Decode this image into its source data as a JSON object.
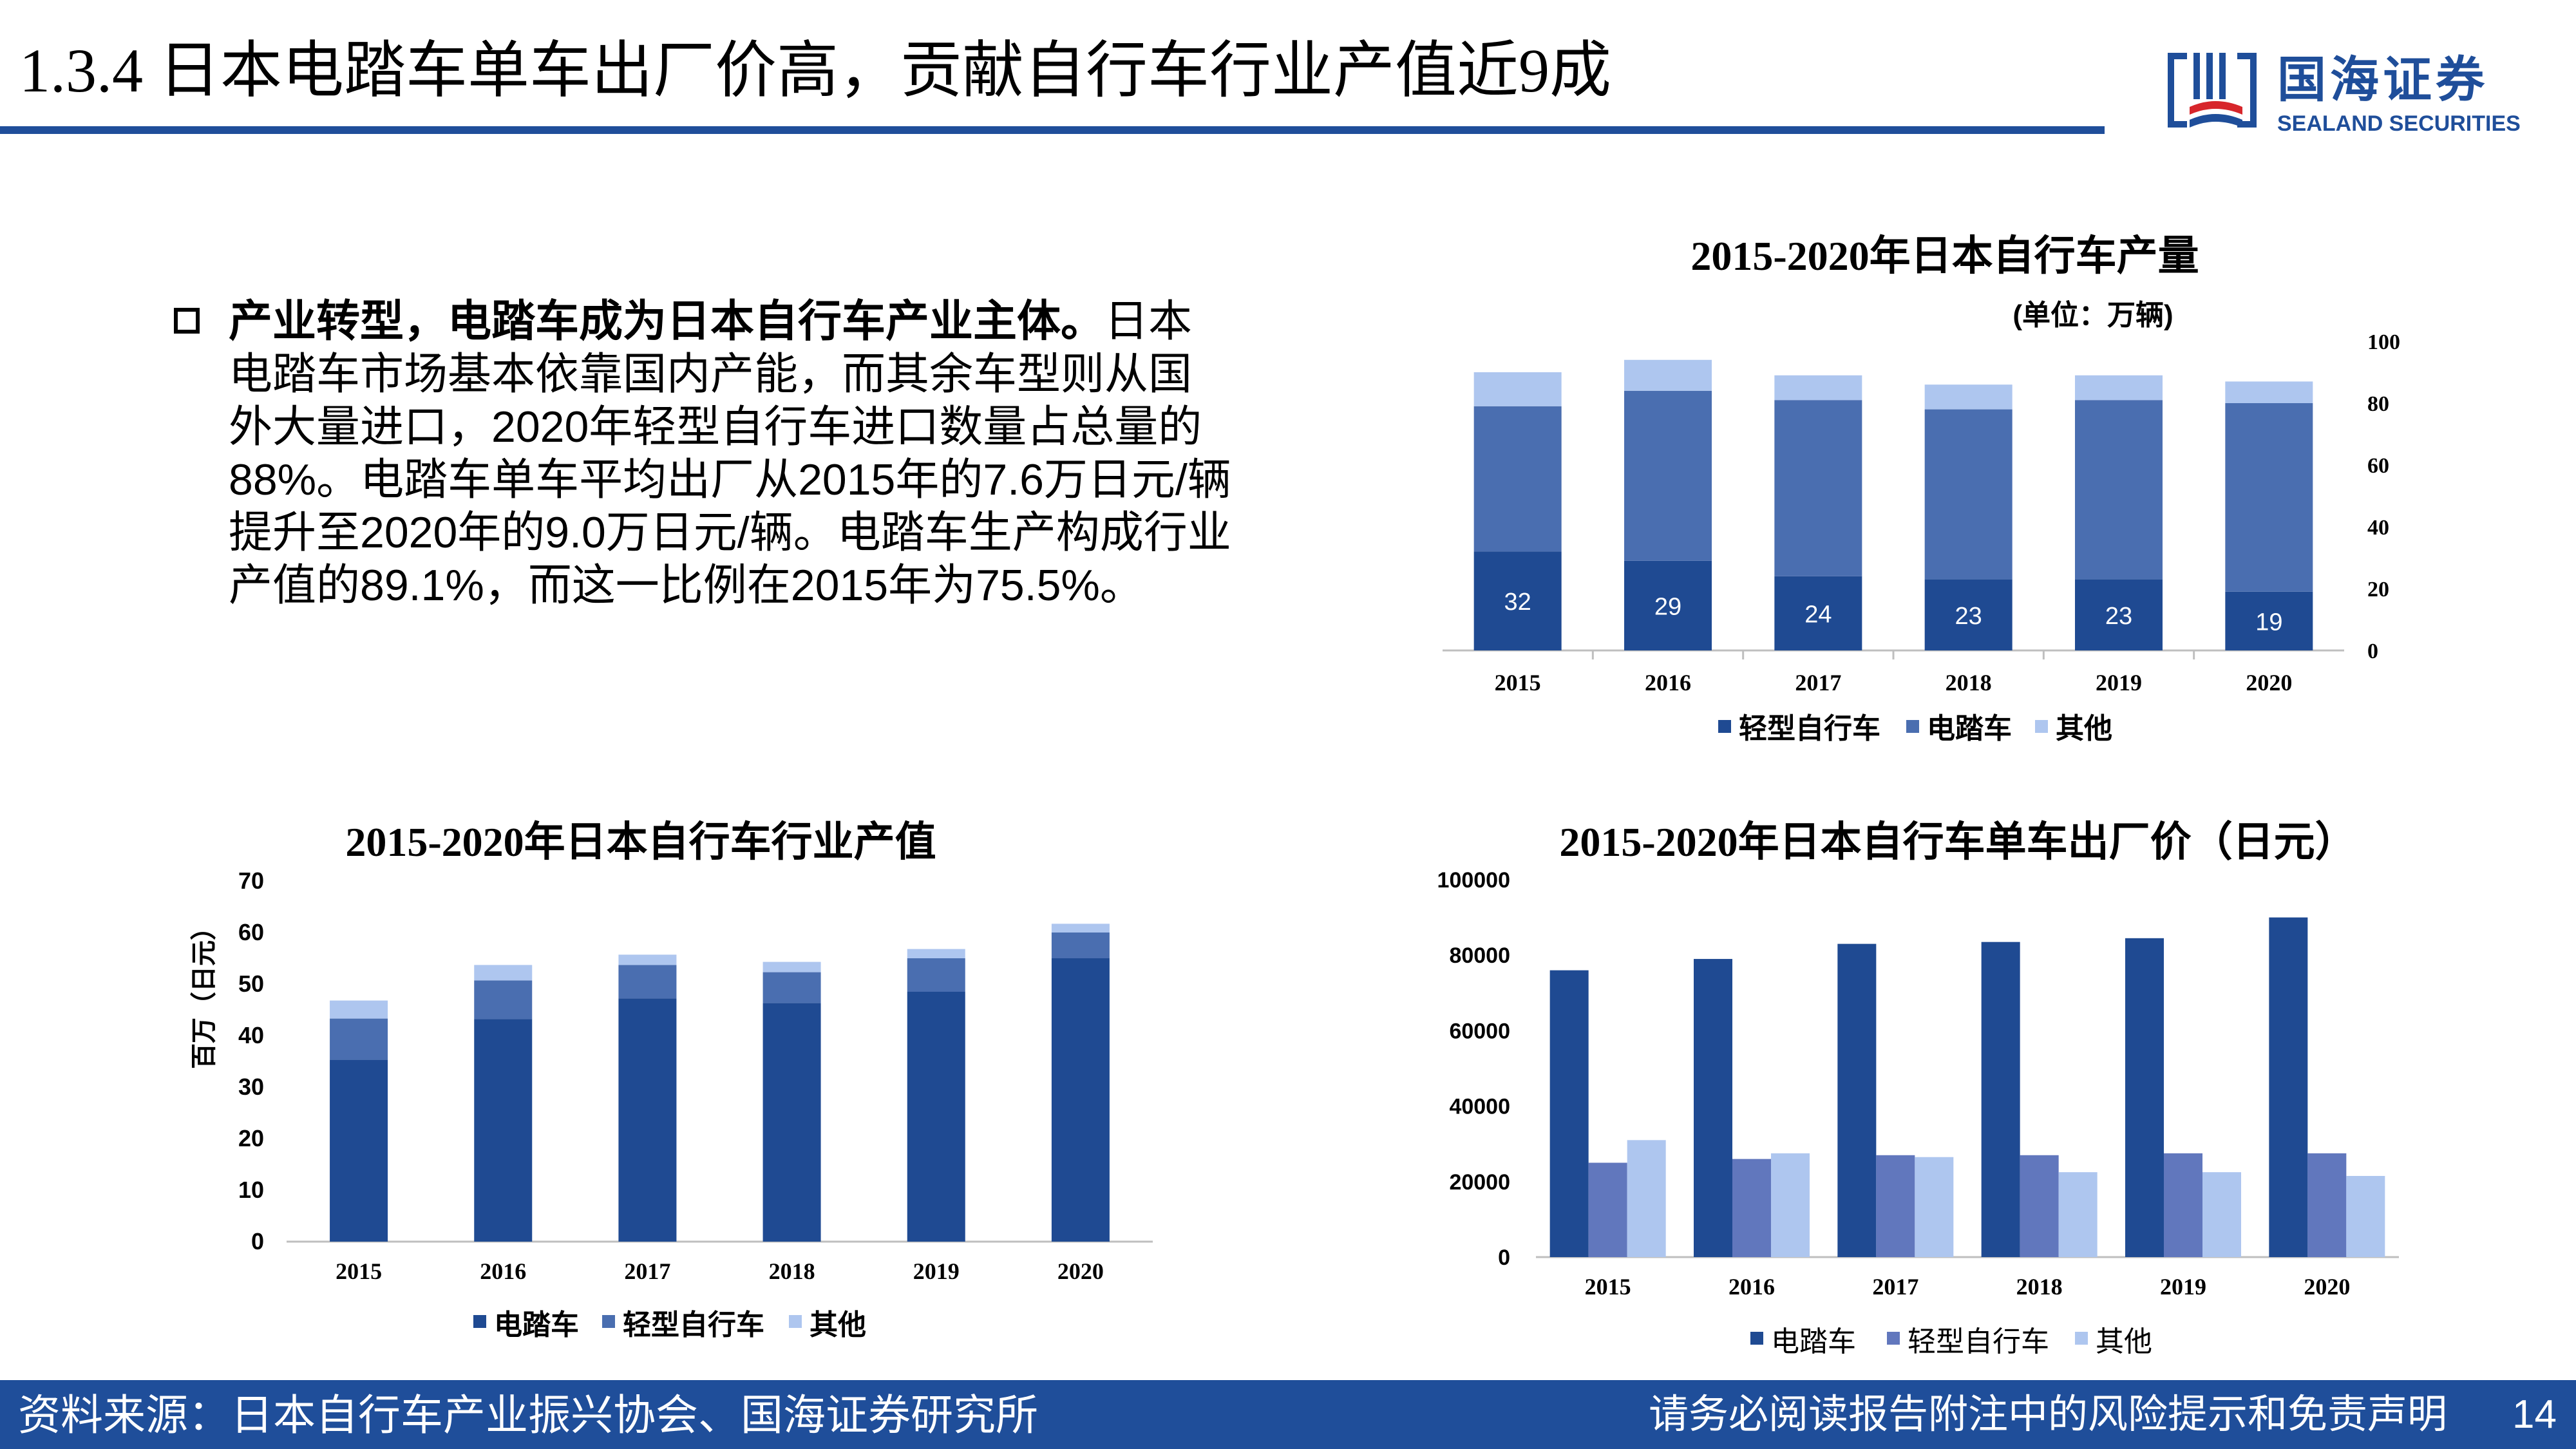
{
  "header": {
    "title": "1.3.4 日本电踏车单车出厂价高，贡献自行车行业产值近9成",
    "logo_cn": "国海证券",
    "logo_en": "SEALAND SECURITIES"
  },
  "body": {
    "bold": "产业转型，电踏车成为日本自行车产业主体。",
    "text": "日本电踏车市场基本依靠国内产能，而其余车型则从国外大量进口，2020年轻型自行车进口数量占总量的88%。电踏车单车平均出厂从2015年的7.6万日元/辆提升至2020年的9.0万日元/辆。电踏车生产构成行业产值的89.1%，而这一比例在2015年为75.5%。"
  },
  "footer": {
    "source": "资料来源：日本自行车产业振兴协会、国海证券研究所",
    "disclaimer": "请务必阅读报告附注中的风险提示和免责声明",
    "page": "14"
  },
  "colors": {
    "brand": "#1f4e9a",
    "dark_blue": "#1f4a92",
    "mid_blue": "#4a6eb0",
    "light_blue": "#aec6ef",
    "violet_blue": "#6177bd"
  },
  "chart_data": [
    {
      "type": "bar",
      "stacked": true,
      "title": "2015-2020年日本自行车产量",
      "subtitle": "(单位：万辆)",
      "categories": [
        "2015",
        "2016",
        "2017",
        "2018",
        "2019",
        "2020"
      ],
      "series": [
        {
          "name": "轻型自行车",
          "values": [
            32,
            29,
            24,
            23,
            23,
            19
          ],
          "labels": [
            "32",
            "29",
            "24",
            "23",
            "23",
            "19"
          ]
        },
        {
          "name": "电踏车",
          "values": [
            47,
            55,
            57,
            55,
            58,
            61
          ]
        },
        {
          "name": "其他",
          "values": [
            11,
            10,
            8,
            8,
            8,
            7
          ]
        }
      ],
      "ylim": [
        0,
        100
      ],
      "yticks": [
        "0",
        "20",
        "40",
        "60",
        "80",
        "100"
      ],
      "yaxis_side": "right",
      "legend": "bottom"
    },
    {
      "type": "bar",
      "stacked": true,
      "title": "2015-2020年日本自行车行业产值",
      "ylabel": "百万（日元）",
      "categories": [
        "2015",
        "2016",
        "2017",
        "2018",
        "2019",
        "2020"
      ],
      "series": [
        {
          "name": "电踏车",
          "values": [
            35.3,
            43.2,
            47.2,
            46.3,
            48.5,
            55.0
          ]
        },
        {
          "name": "轻型自行车",
          "values": [
            8.0,
            7.5,
            6.5,
            6.0,
            6.5,
            5.0
          ]
        },
        {
          "name": "其他",
          "values": [
            3.5,
            3.0,
            2.0,
            2.0,
            1.8,
            1.7
          ]
        }
      ],
      "ylim": [
        0,
        70
      ],
      "yticks": [
        "0",
        "10",
        "20",
        "30",
        "40",
        "50",
        "60",
        "70"
      ],
      "legend": "bottom"
    },
    {
      "type": "bar",
      "stacked": false,
      "title": "2015-2020年日本自行车单车出厂价（日元）",
      "categories": [
        "2015",
        "2016",
        "2017",
        "2018",
        "2019",
        "2020"
      ],
      "series": [
        {
          "name": "电踏车",
          "values": [
            76000,
            79000,
            83000,
            83500,
            84500,
            90000
          ]
        },
        {
          "name": "轻型自行车",
          "values": [
            25000,
            26000,
            27000,
            27000,
            27500,
            27500
          ]
        },
        {
          "name": "其他",
          "values": [
            31000,
            27500,
            26500,
            22500,
            22500,
            21500
          ]
        }
      ],
      "ylim": [
        0,
        100000
      ],
      "yticks": [
        "0",
        "20000",
        "40000",
        "60000",
        "80000",
        "100000"
      ],
      "legend": "bottom"
    }
  ]
}
